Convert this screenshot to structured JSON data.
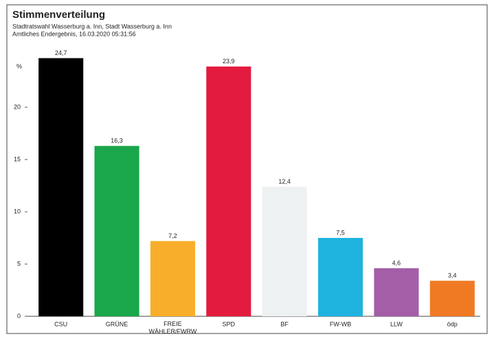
{
  "chart_data": {
    "type": "bar",
    "title": "Stimmenverteilung",
    "subtitle": [
      "Stadtratswahl Wasserburg a. Inn, Stadt Wasserburg a. Inn",
      "Amtliches Endergebnis, 16.03.2020 05:31:56"
    ],
    "y_label": "%",
    "categories": [
      "CSU",
      "GRÜNE",
      "FREIE WÄHLER/FWRW",
      "SPD",
      "BF",
      "FW-WB",
      "LLW",
      "ödp"
    ],
    "values": [
      24.7,
      16.3,
      7.2,
      23.9,
      12.4,
      7.5,
      4.6,
      3.4
    ],
    "value_labels": [
      "24,7",
      "16,3",
      "7,2",
      "23,9",
      "12,4",
      "7,5",
      "4,6",
      "3,4"
    ],
    "colors": [
      "#000000",
      "#1aa64a",
      "#f9ae2b",
      "#e31b3f",
      "#eef1f2",
      "#1fb3e0",
      "#a45ea8",
      "#f07a24"
    ],
    "ylim": [
      0,
      25
    ],
    "yticks": [
      0,
      5,
      10,
      15,
      20
    ],
    "grid": false
  }
}
